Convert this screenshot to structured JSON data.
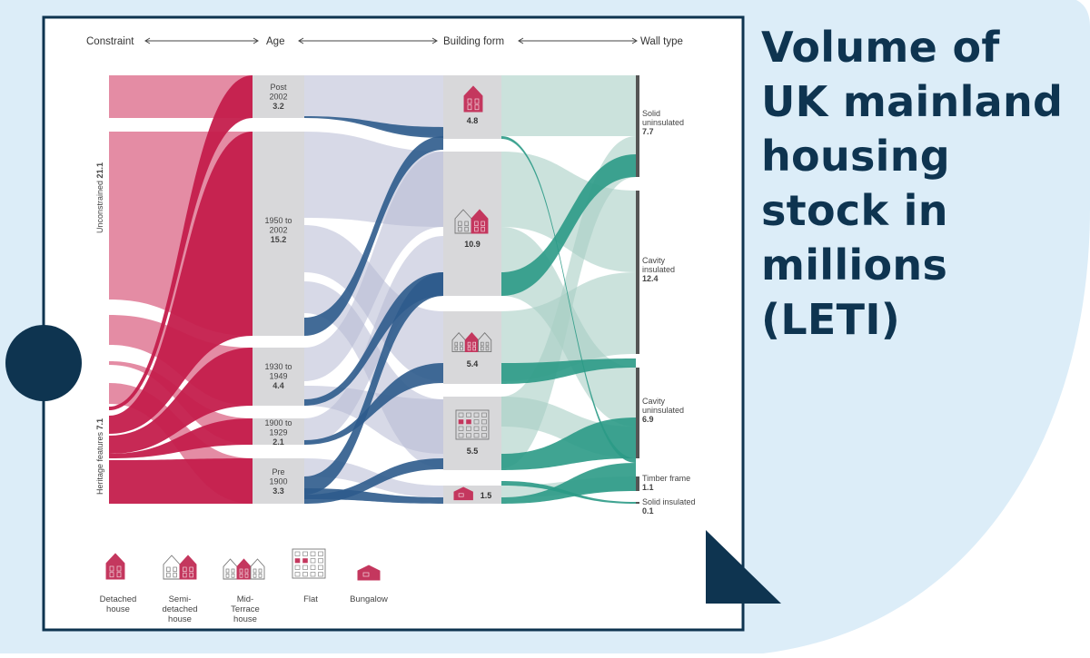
{
  "headline": [
    "Volume of",
    "UK mainland",
    "housing",
    "stock in",
    "millions",
    "(LETI)"
  ],
  "colors": {
    "navy": "#0e3450",
    "pale_blue_bg": "#dcedf8",
    "heritage": "#c41e4c",
    "unconstrained": "#e48ca4",
    "age_bar": "#d8d8da",
    "unconstrained_to_form": "#b7bad4",
    "heritage_to_form": "#2d5b8c",
    "form_to_wall": "#a9cfc4",
    "heritage_to_wall": "#2b9a86",
    "wall_bar": "#555555",
    "house_icon": "#c4375e"
  },
  "stage_labels": {
    "constraint": "Constraint",
    "age": "Age",
    "building_form": "Building form",
    "wall_type": "Wall type"
  },
  "constraint": [
    {
      "id": "unconstrained",
      "label": "Unconstrained",
      "value": "21.1"
    },
    {
      "id": "heritage",
      "label": "Heritage features",
      "value": "7.1"
    }
  ],
  "age": [
    {
      "id": "post2002",
      "label": [
        "Post",
        "2002"
      ],
      "value": "3.2"
    },
    {
      "id": "y1950_2002",
      "label": [
        "1950 to",
        "2002"
      ],
      "value": "15.2"
    },
    {
      "id": "y1930_1949",
      "label": [
        "1930 to",
        "1949"
      ],
      "value": "4.4"
    },
    {
      "id": "y1900_1929",
      "label": [
        "1900 to",
        "1929"
      ],
      "value": "2.1"
    },
    {
      "id": "pre1900",
      "label": [
        "Pre",
        "1900"
      ],
      "value": "3.3"
    }
  ],
  "building_form": [
    {
      "id": "detached",
      "value": "4.8"
    },
    {
      "id": "semi",
      "value": "10.9"
    },
    {
      "id": "terrace",
      "value": "5.4"
    },
    {
      "id": "flat",
      "value": "5.5"
    },
    {
      "id": "bungalow",
      "value": "1.5"
    }
  ],
  "wall_type": [
    {
      "id": "solid_uninsulated",
      "label": [
        "Solid",
        "uninsulated"
      ],
      "value": "7.7"
    },
    {
      "id": "cavity_insulated",
      "label": [
        "Cavity",
        "insulated"
      ],
      "value": "12.4"
    },
    {
      "id": "cavity_uninsulated",
      "label": [
        "Cavity",
        "uninsulated"
      ],
      "value": "6.9"
    },
    {
      "id": "timber_frame",
      "label": [
        "Timber frame"
      ],
      "value": "1.1"
    },
    {
      "id": "solid_insulated",
      "label": [
        "Solid insulated"
      ],
      "value": "0.1"
    }
  ],
  "legend": [
    {
      "id": "detached",
      "label": [
        "Detached",
        "house"
      ],
      "icon": "detached-house-icon"
    },
    {
      "id": "semi",
      "label": [
        "Semi-",
        "detached",
        "house"
      ],
      "icon": "semi-detached-house-icon"
    },
    {
      "id": "terrace",
      "label": [
        "Mid-",
        "Terrace",
        "house"
      ],
      "icon": "mid-terrace-house-icon"
    },
    {
      "id": "flat",
      "label": [
        "Flat"
      ],
      "icon": "flat-icon"
    },
    {
      "id": "bungalow",
      "label": [
        "Bungalow"
      ],
      "icon": "bungalow-icon"
    }
  ]
}
